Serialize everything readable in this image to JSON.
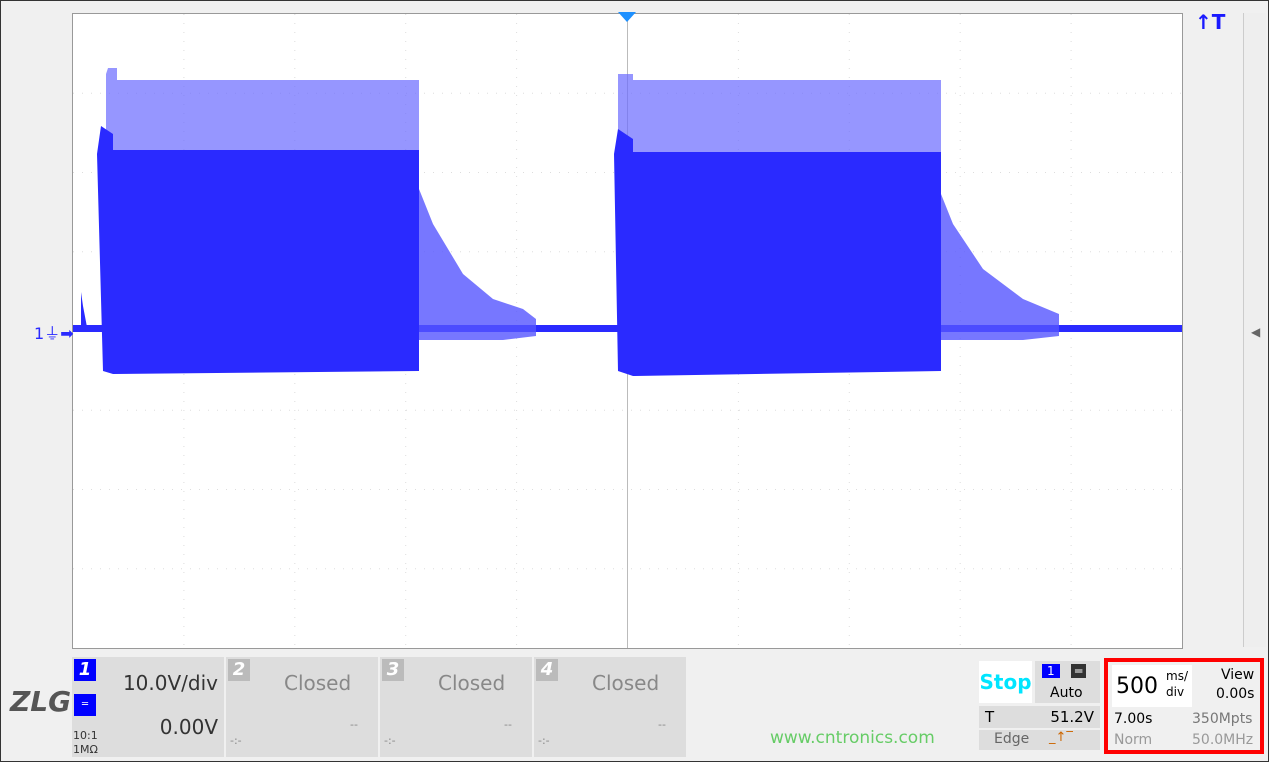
{
  "trigger_marker": "↑T",
  "channel_marker": "1",
  "logo": "ZLG",
  "channels": [
    {
      "num": "1",
      "scale": "10.0V/div",
      "offset": "0.00V",
      "probe": "10:1",
      "impedance": "1MΩ",
      "coupling_icon": "dc-coupling-icon",
      "color": "#0000ff"
    },
    {
      "num": "2",
      "scale": "Closed",
      "offset": "--",
      "extra": "-:-"
    },
    {
      "num": "3",
      "scale": "Closed",
      "offset": "--",
      "extra": "-:-"
    },
    {
      "num": "4",
      "scale": "Closed",
      "offset": "--",
      "extra": "-:-"
    }
  ],
  "run_state": "Stop",
  "trigger": {
    "source": "1",
    "mode": "Auto",
    "label": "T",
    "level": "51.2V",
    "type": "Edge"
  },
  "timebase": {
    "value": "500",
    "unit_top": "ms/",
    "unit_bottom": "div",
    "view_label": "View",
    "view_value": "0.00s",
    "duration": "7.00s",
    "memory": "350Mpts",
    "acq_mode": "Norm",
    "sample": "50.0MHz"
  },
  "watermark": "www.cntronics.com",
  "colors": {
    "trace": "#2a2aff",
    "highlight": "#ff0000",
    "stop": "#00e5ff"
  }
}
